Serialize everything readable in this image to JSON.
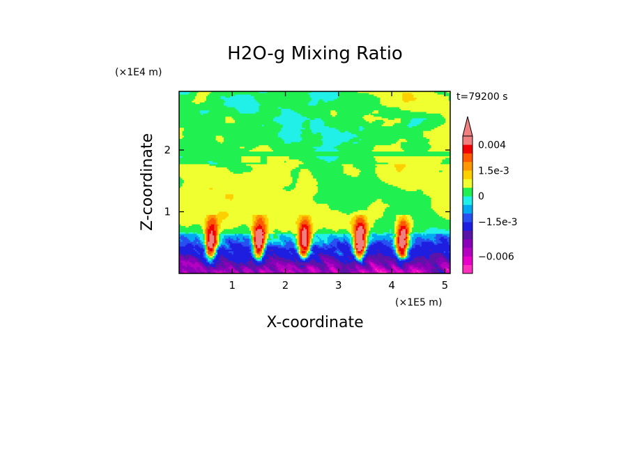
{
  "chart_data": {
    "type": "heatmap",
    "title": "H2O-g Mixing Ratio",
    "xlabel": "X-coordinate",
    "ylabel": "Z-coordinate",
    "x_unit": "(×1E5 m)",
    "y_unit": "(×1E4 m)",
    "time_label": "t=79200 s",
    "xlim": [
      0,
      5.1
    ],
    "ylim": [
      0,
      2.95
    ],
    "x_ticks": [
      1,
      2,
      3,
      4,
      5
    ],
    "y_ticks": [
      1,
      2
    ],
    "colorbar": {
      "levels": [
        -0.008,
        -0.007,
        -0.006,
        -0.005,
        -0.004,
        -0.003,
        -0.0015,
        -0.001,
        -0.0005,
        0,
        0.0005,
        0.001,
        0.0015,
        0.002,
        0.003,
        0.004,
        0.005
      ],
      "colors": [
        "#ff2fc0",
        "#e800c8",
        "#b400c0",
        "#8a00b8",
        "#5a14a8",
        "#1e1ee0",
        "#2850f0",
        "#00a8f0",
        "#20f0e8",
        "#20f050",
        "#f0ff30",
        "#ffd000",
        "#ff9800",
        "#ff5a00",
        "#f00000",
        "#f08080"
      ],
      "extend": "max",
      "tick_labels": [
        {
          "value": 0.004,
          "label": "0.004"
        },
        {
          "value": 0.0015,
          "label": "1.5e-3"
        },
        {
          "value": 0,
          "label": "0"
        },
        {
          "value": -0.0015,
          "label": "-1.5e-3"
        },
        {
          "value": -0.006,
          "label": "-0.006"
        }
      ]
    },
    "convective_cores_x": [
      0.6,
      1.5,
      2.35,
      3.4,
      4.2
    ],
    "grid": false
  }
}
